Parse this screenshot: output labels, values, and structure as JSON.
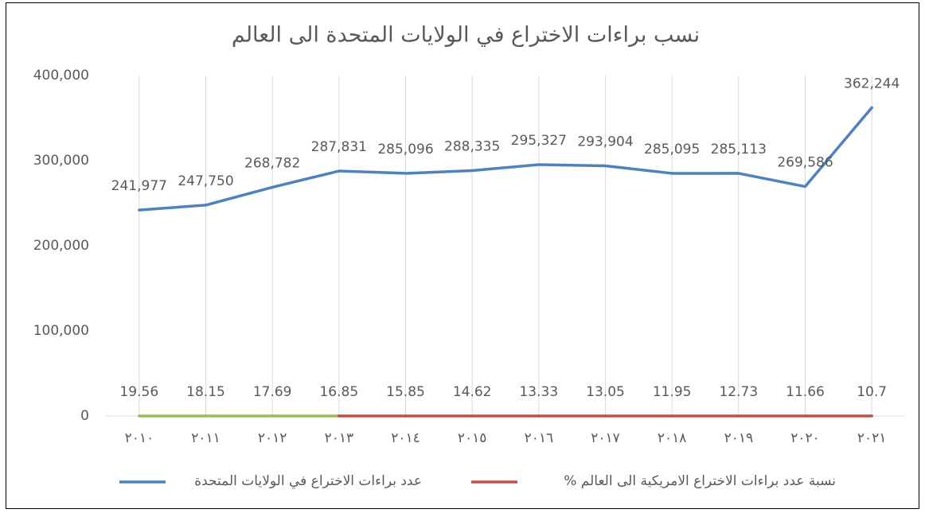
{
  "chart_data": {
    "type": "line",
    "title": "نسب براءات الاختراع في الولايات المتحدة الى العالم",
    "categories": [
      "٢٠١٠",
      "٢٠١١",
      "٢٠١٢",
      "٢٠١٣",
      "٢٠١٤",
      "٢٠١٥",
      "٢٠١٦",
      "٢٠١٧",
      "٢٠١٨",
      "٢٠١٩",
      "٢٠٢٠",
      "٢٠٢١"
    ],
    "series": [
      {
        "name": "عدد براءات الاختراع في الولايات المتحدة",
        "color": "#4f81bd",
        "values": [
          241977,
          247750,
          268782,
          287831,
          285096,
          288335,
          295327,
          293904,
          285095,
          285113,
          269586,
          362244
        ],
        "value_labels": [
          "241,977",
          "247,750",
          "268,782",
          "287,831",
          "285,096",
          "288,335",
          "295,327",
          "293,904",
          "285,095",
          "285,113",
          "269,586",
          "362,244"
        ]
      },
      {
        "name": "نسبة عدد براءات الاختراع الامريكية الى العالم %",
        "color": "#c0504d",
        "values": [
          19.56,
          18.15,
          17.69,
          16.85,
          15.85,
          14.62,
          13.33,
          13.05,
          11.95,
          12.73,
          11.66,
          10.7
        ],
        "segment_colors": [
          "#9bbb59",
          "#9bbb59",
          "#9bbb59",
          "#c0504d",
          "#c0504d",
          "#c0504d",
          "#c0504d",
          "#c0504d",
          "#c0504d",
          "#c0504d",
          "#c0504d"
        ]
      }
    ],
    "ylim": [
      0,
      400000
    ],
    "yticks": [
      0,
      {
        "value": 100000,
        "label": "100,000"
      },
      {
        "value": 200000,
        "label": "200,000"
      },
      {
        "value": 300000,
        "label": "300,000"
      },
      {
        "value": 400000,
        "label": "400,000"
      }
    ],
    "grid": "x",
    "legend": "bottom"
  }
}
